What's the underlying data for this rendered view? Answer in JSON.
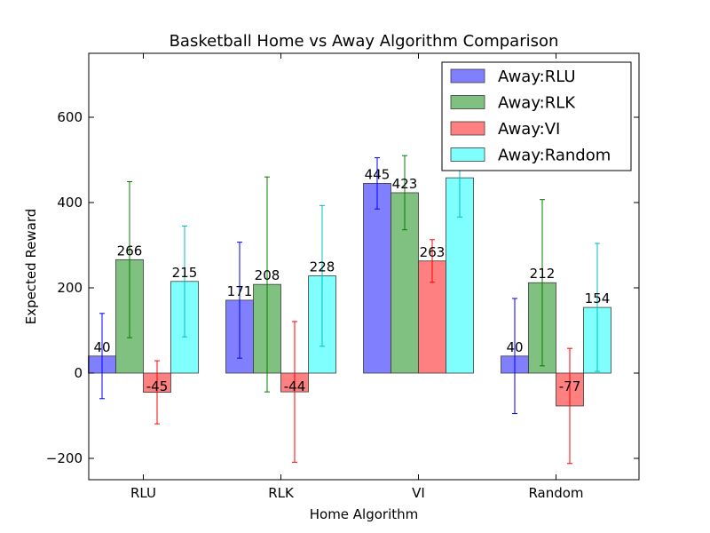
{
  "chart_data": {
    "type": "bar",
    "title": "Basketball Home vs Away Algorithm Comparison",
    "xlabel": "Home Algorithm",
    "ylabel": "Expected Reward",
    "ylim": [
      -250,
      750
    ],
    "yticks": [
      -200,
      0,
      200,
      400,
      600
    ],
    "ytick_labels": [
      "−200",
      "0",
      "200",
      "400",
      "600"
    ],
    "categories": [
      "RLU",
      "RLK",
      "VI",
      "Random"
    ],
    "legend_position": "top-right",
    "grid": false,
    "series": [
      {
        "name": "Away:RLU",
        "color": "#8080ff",
        "error_color": "#0000ff",
        "values": [
          40,
          171,
          445,
          40
        ],
        "labels": [
          "40",
          "171",
          "445",
          "40"
        ],
        "errors": [
          100,
          136,
          60,
          135
        ]
      },
      {
        "name": "Away:RLK",
        "color": "#80c080",
        "error_color": "#008000",
        "values": [
          266,
          208,
          423,
          212
        ],
        "labels": [
          "266",
          "208",
          "423",
          "212"
        ],
        "errors": [
          183,
          252,
          87,
          195
        ]
      },
      {
        "name": "Away:VI",
        "color": "#ff8080",
        "error_color": "#ff0000",
        "values": [
          -45,
          -44,
          263,
          -77
        ],
        "labels": [
          "-45",
          "-44",
          "263",
          "-77"
        ],
        "errors": [
          74,
          165,
          50,
          135
        ]
      },
      {
        "name": "Away:Random",
        "color": "#80ffff",
        "error_color": "#00bfbf",
        "values": [
          215,
          228,
          458,
          154
        ],
        "labels": [
          "215",
          "228",
          "",
          "154"
        ],
        "errors": [
          130,
          165,
          92,
          150
        ]
      }
    ]
  }
}
